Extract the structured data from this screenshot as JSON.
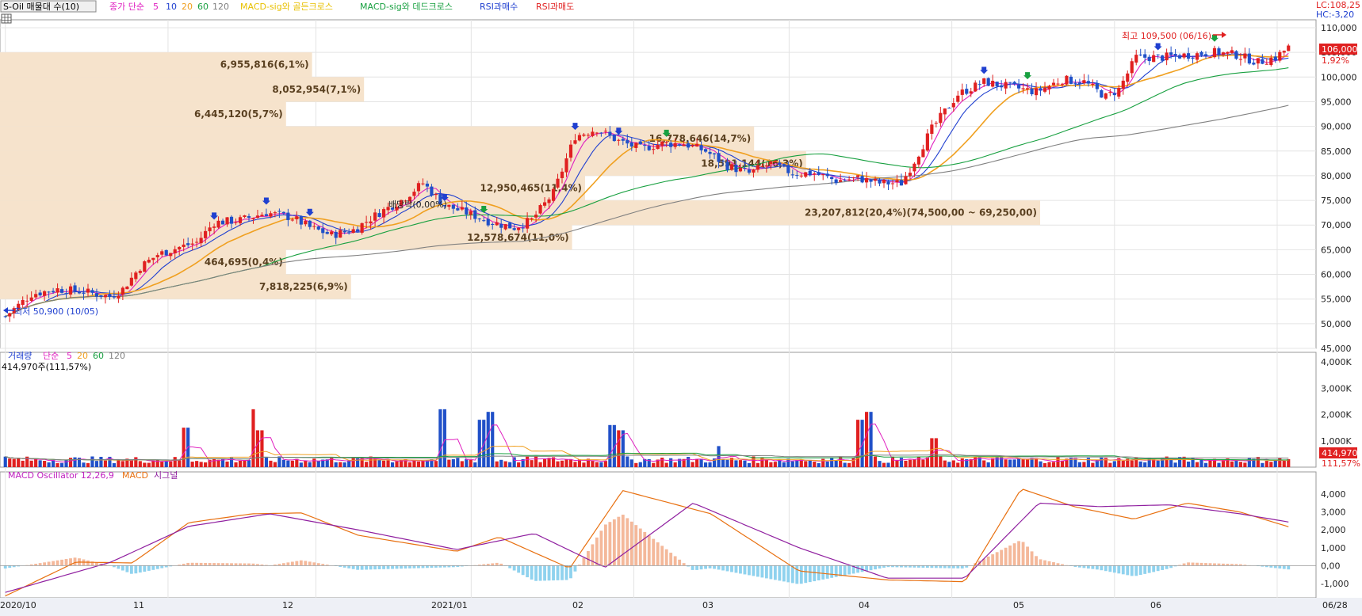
{
  "header": {
    "symbol_label": "S-Oil 매물대 수(10)",
    "ma_title": "종가 단순",
    "ma_periods": [
      "5",
      "10",
      "20",
      "60",
      "120"
    ],
    "ma_colors": [
      "#e020c0",
      "#2040d0",
      "#f0a020",
      "#18a040",
      "#808080"
    ],
    "signals": [
      {
        "label": "MACD-sig와 골든크로스",
        "color": "#e8c000"
      },
      {
        "label": "MACD-sig와 데드크로스",
        "color": "#18a040"
      },
      {
        "label": "RSI과매수",
        "color": "#2040d0"
      },
      {
        "label": "RSI과매도",
        "color": "#e02020"
      }
    ],
    "lc": "LC:108,25",
    "hc": "HC:-3,20"
  },
  "colors": {
    "up": "#e02020",
    "down": "#2050c8",
    "profile": "#f6e3cc",
    "profile_text": "#5a4020"
  },
  "price_axis": {
    "labels": [
      "110,000",
      "105,000",
      "100,000",
      "95,000",
      "90,000",
      "85,000",
      "80,000",
      "75,000",
      "70,000",
      "65,000",
      "60,000",
      "55,000",
      "50,000",
      "45,000"
    ],
    "min": 45000,
    "max": 110000
  },
  "current_price": {
    "value": "106,000",
    "change": "1,92%"
  },
  "high_marker": "최고 109,500 (06/16)",
  "low_marker": "최저 50,900 (10/05)",
  "dividend_label": "배당락(0,00%)",
  "volume_profile": [
    {
      "label": "464,695(0,4%)",
      "price": 62500,
      "frac": 0.22
    },
    {
      "label": "7,818,225(6,9%)",
      "price": 57500,
      "frac": 0.27
    },
    {
      "label": "12,578,674(11,0%)",
      "price": 67500,
      "frac": 0.44
    },
    {
      "label": "23,207,812(20,4%)(74,500,00 ~ 69,250,00)",
      "price": 72500,
      "frac": 0.8
    },
    {
      "label": "12,950,465(11,4%)",
      "price": 77500,
      "frac": 0.45
    },
    {
      "label": "18,591,144(16,3%)",
      "price": 82500,
      "frac": 0.62
    },
    {
      "label": "16,778,646(14,7%)",
      "price": 87500,
      "frac": 0.58
    },
    {
      "label": "6,445,120(5,7%)",
      "price": 92500,
      "frac": 0.22
    },
    {
      "label": "8,052,954(7,1%)",
      "price": 97500,
      "frac": 0.28
    },
    {
      "label": "6,955,816(6,1%)",
      "price": 102500,
      "frac": 0.24
    }
  ],
  "volume_panel": {
    "title": "거래량",
    "ma_title": "단순",
    "ma_periods": [
      "5",
      "20",
      "60",
      "120"
    ],
    "current": "414,970주(111,57%)",
    "axis_labels": [
      "4,000K",
      "3,000K",
      "2,000K",
      "1,000K"
    ],
    "badge_value": "414,970",
    "badge_pct": "111,57%",
    "max": 4000
  },
  "macd_panel": {
    "title": "MACD Oscillator 12,26,9",
    "macd_label": "MACD",
    "signal_label": "시그널",
    "axis_labels": [
      "4,000",
      "3,000",
      "2,000",
      "1,000",
      "0,00",
      "-1,000"
    ],
    "min": -1800,
    "max": 4800
  },
  "x_axis": {
    "labels": [
      "2020/10",
      "11",
      "12",
      "2021/01",
      "02",
      "03",
      "04",
      "05",
      "06",
      "06/28"
    ]
  },
  "chart_data": {
    "type": "candlestick",
    "title": "S-Oil",
    "ylim": [
      45000,
      110000
    ],
    "close_anchors": [
      [
        0,
        51500
      ],
      [
        6,
        56000
      ],
      [
        12,
        57000
      ],
      [
        18,
        56500
      ],
      [
        24,
        55500
      ],
      [
        27,
        57000
      ],
      [
        31,
        61500
      ],
      [
        35,
        64000
      ],
      [
        40,
        65500
      ],
      [
        44,
        66500
      ],
      [
        48,
        70500
      ],
      [
        54,
        71000
      ],
      [
        60,
        72500
      ],
      [
        66,
        71500
      ],
      [
        70,
        69500
      ],
      [
        75,
        68000
      ],
      [
        80,
        69000
      ],
      [
        86,
        72500
      ],
      [
        91,
        75000
      ],
      [
        96,
        78500
      ],
      [
        101,
        74000
      ],
      [
        106,
        72500
      ],
      [
        112,
        70500
      ],
      [
        117,
        69500
      ],
      [
        121,
        71000
      ],
      [
        126,
        76500
      ],
      [
        131,
        88000
      ],
      [
        136,
        89500
      ],
      [
        141,
        87000
      ],
      [
        146,
        85500
      ],
      [
        151,
        86500
      ],
      [
        156,
        86500
      ],
      [
        161,
        85000
      ],
      [
        166,
        82000
      ],
      [
        171,
        80500
      ],
      [
        176,
        82500
      ],
      [
        181,
        80500
      ],
      [
        186,
        80500
      ],
      [
        191,
        79000
      ],
      [
        196,
        79500
      ],
      [
        201,
        78500
      ],
      [
        206,
        78500
      ],
      [
        209,
        83000
      ],
      [
        213,
        89500
      ],
      [
        219,
        96500
      ],
      [
        225,
        99000
      ],
      [
        231,
        98000
      ],
      [
        237,
        97000
      ],
      [
        243,
        99500
      ],
      [
        248,
        99000
      ],
      [
        253,
        96000
      ],
      [
        256,
        97500
      ],
      [
        260,
        104000
      ],
      [
        266,
        104000
      ],
      [
        272,
        104500
      ],
      [
        278,
        105000
      ],
      [
        283,
        104500
      ],
      [
        288,
        103000
      ],
      [
        292,
        104000
      ],
      [
        295,
        106000
      ]
    ],
    "volume_spikes": [
      [
        0,
        400
      ],
      [
        50,
        3900
      ],
      [
        51,
        1500
      ],
      [
        70,
        2200
      ],
      [
        71,
        1400
      ],
      [
        122,
        2200
      ],
      [
        134,
        1800
      ],
      [
        136,
        2100
      ],
      [
        170,
        1600
      ],
      [
        172,
        1400
      ],
      [
        200,
        800
      ],
      [
        240,
        1800
      ],
      [
        242,
        2100
      ],
      [
        260,
        1100
      ]
    ],
    "macd_anchors": [
      [
        0,
        -1700
      ],
      [
        20,
        200
      ],
      [
        36,
        150
      ],
      [
        52,
        2400
      ],
      [
        70,
        2900
      ],
      [
        84,
        2950
      ],
      [
        100,
        1700
      ],
      [
        128,
        800
      ],
      [
        140,
        1600
      ],
      [
        160,
        -150
      ],
      [
        175,
        4200
      ],
      [
        200,
        2900
      ],
      [
        225,
        -300
      ],
      [
        250,
        -800
      ],
      [
        272,
        -900
      ],
      [
        288,
        4300
      ],
      [
        303,
        3300
      ],
      [
        320,
        2600
      ],
      [
        335,
        3500
      ],
      [
        350,
        3000
      ],
      [
        365,
        2100
      ]
    ],
    "signal_anchors": [
      [
        0,
        -1500
      ],
      [
        30,
        200
      ],
      [
        52,
        2200
      ],
      [
        75,
        2900
      ],
      [
        100,
        2000
      ],
      [
        128,
        900
      ],
      [
        150,
        1800
      ],
      [
        170,
        -100
      ],
      [
        195,
        3500
      ],
      [
        225,
        1000
      ],
      [
        250,
        -700
      ],
      [
        272,
        -700
      ],
      [
        293,
        3500
      ],
      [
        310,
        3300
      ],
      [
        330,
        3400
      ],
      [
        350,
        2900
      ],
      [
        365,
        2400
      ]
    ]
  }
}
